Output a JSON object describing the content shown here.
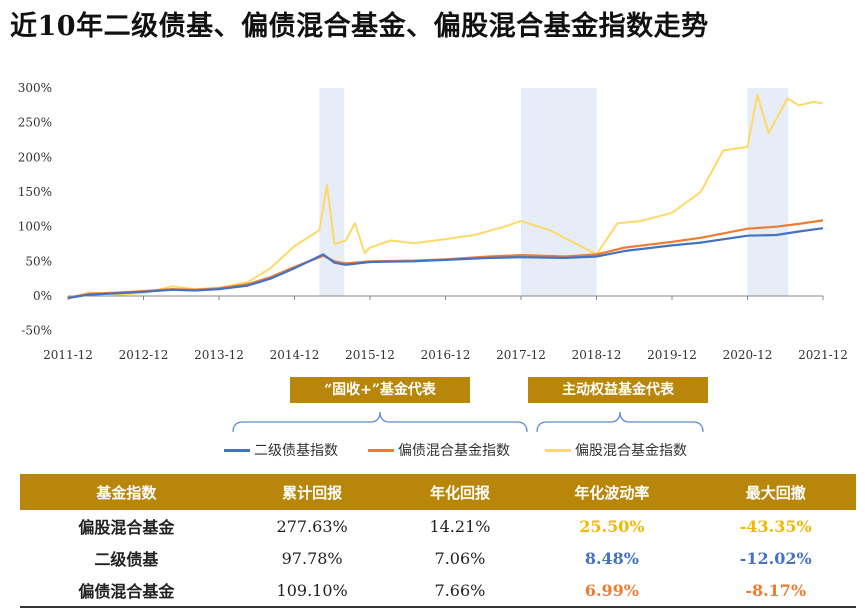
{
  "title": "近10年二级债基、偏债混合基金、偏股混合基金指数走势",
  "chart_data": {
    "type": "line",
    "x_ticks": [
      "2011-12",
      "2012-12",
      "2013-12",
      "2014-12",
      "2015-12",
      "2016-12",
      "2017-12",
      "2018-12",
      "2019-12",
      "2020-12",
      "2021-12"
    ],
    "y_ticks": [
      "300%",
      "250%",
      "200%",
      "150%",
      "100%",
      "50%",
      "0%",
      "-50%"
    ],
    "ylim": [
      -50,
      300
    ],
    "xlim": [
      2011.92,
      2021.92
    ],
    "shaded_periods": [
      [
        2015.25,
        2015.58
      ],
      [
        2017.92,
        2018.92
      ],
      [
        2020.92,
        2021.46
      ]
    ],
    "series": [
      {
        "name": "二级债基指数",
        "color": "#4472C4",
        "points": [
          [
            2011.92,
            -3
          ],
          [
            2012.2,
            2
          ],
          [
            2012.6,
            4
          ],
          [
            2012.92,
            6
          ],
          [
            2013.3,
            9
          ],
          [
            2013.6,
            8
          ],
          [
            2013.92,
            10
          ],
          [
            2014.3,
            15
          ],
          [
            2014.6,
            25
          ],
          [
            2014.92,
            40
          ],
          [
            2015.3,
            60
          ],
          [
            2015.45,
            48
          ],
          [
            2015.6,
            45
          ],
          [
            2015.92,
            49
          ],
          [
            2016.5,
            50
          ],
          [
            2016.92,
            52
          ],
          [
            2017.5,
            55
          ],
          [
            2017.92,
            56
          ],
          [
            2018.5,
            55
          ],
          [
            2018.92,
            57
          ],
          [
            2019.3,
            65
          ],
          [
            2019.92,
            73
          ],
          [
            2020.3,
            77
          ],
          [
            2020.92,
            87
          ],
          [
            2021.3,
            88
          ],
          [
            2021.6,
            93
          ],
          [
            2021.92,
            97.78
          ]
        ]
      },
      {
        "name": "偏债混合基金指数",
        "color": "#ED7D31",
        "points": [
          [
            2011.92,
            -2
          ],
          [
            2012.2,
            3
          ],
          [
            2012.6,
            5
          ],
          [
            2012.92,
            7
          ],
          [
            2013.3,
            10
          ],
          [
            2013.6,
            9
          ],
          [
            2013.92,
            11
          ],
          [
            2014.3,
            17
          ],
          [
            2014.6,
            27
          ],
          [
            2014.92,
            42
          ],
          [
            2015.3,
            58
          ],
          [
            2015.45,
            50
          ],
          [
            2015.6,
            47
          ],
          [
            2015.92,
            50
          ],
          [
            2016.5,
            51
          ],
          [
            2016.92,
            53
          ],
          [
            2017.5,
            57
          ],
          [
            2017.92,
            59
          ],
          [
            2018.5,
            57
          ],
          [
            2018.92,
            60
          ],
          [
            2019.3,
            70
          ],
          [
            2019.92,
            78
          ],
          [
            2020.3,
            84
          ],
          [
            2020.92,
            97
          ],
          [
            2021.3,
            100
          ],
          [
            2021.6,
            104
          ],
          [
            2021.92,
            109.1
          ]
        ]
      },
      {
        "name": "偏股混合基金指数",
        "color": "#FFD966",
        "points": [
          [
            2011.92,
            -4
          ],
          [
            2012.2,
            5
          ],
          [
            2012.6,
            2
          ],
          [
            2012.92,
            4
          ],
          [
            2013.3,
            14
          ],
          [
            2013.6,
            10
          ],
          [
            2013.92,
            12
          ],
          [
            2014.3,
            20
          ],
          [
            2014.6,
            40
          ],
          [
            2014.92,
            72
          ],
          [
            2015.25,
            95
          ],
          [
            2015.35,
            160
          ],
          [
            2015.45,
            75
          ],
          [
            2015.6,
            80
          ],
          [
            2015.72,
            105
          ],
          [
            2015.85,
            62
          ],
          [
            2015.92,
            70
          ],
          [
            2016.2,
            80
          ],
          [
            2016.5,
            76
          ],
          [
            2016.92,
            82
          ],
          [
            2017.3,
            88
          ],
          [
            2017.7,
            100
          ],
          [
            2017.92,
            108
          ],
          [
            2018.3,
            95
          ],
          [
            2018.6,
            78
          ],
          [
            2018.92,
            60
          ],
          [
            2019.2,
            105
          ],
          [
            2019.5,
            108
          ],
          [
            2019.92,
            120
          ],
          [
            2020.3,
            150
          ],
          [
            2020.6,
            210
          ],
          [
            2020.92,
            215
          ],
          [
            2021.05,
            290
          ],
          [
            2021.2,
            235
          ],
          [
            2021.45,
            285
          ],
          [
            2021.6,
            275
          ],
          [
            2021.8,
            280
          ],
          [
            2021.92,
            277.63
          ]
        ]
      }
    ]
  },
  "tags": {
    "fixed_income_plus": "“固收+”基金代表",
    "active_equity": "主动权益基金代表"
  },
  "legend": [
    "二级债基指数",
    "偏债混合基金指数",
    "偏股混合基金指数"
  ],
  "table": {
    "headers": [
      "基金指数",
      "累计回报",
      "年化回报",
      "年化波动率",
      "最大回撤"
    ],
    "rows": [
      {
        "name": "偏股混合基金",
        "cum": "277.63%",
        "ann": "14.21%",
        "vol": "25.50%",
        "dd": "-43.35%",
        "color": "#F5B800"
      },
      {
        "name": "二级债基",
        "cum": "97.78%",
        "ann": "7.06%",
        "vol": "8.48%",
        "dd": "-12.02%",
        "color": "#4472C4"
      },
      {
        "name": "偏债混合基金",
        "cum": "109.10%",
        "ann": "7.66%",
        "vol": "6.99%",
        "dd": "-8.17%",
        "color": "#ED7D31"
      }
    ]
  }
}
